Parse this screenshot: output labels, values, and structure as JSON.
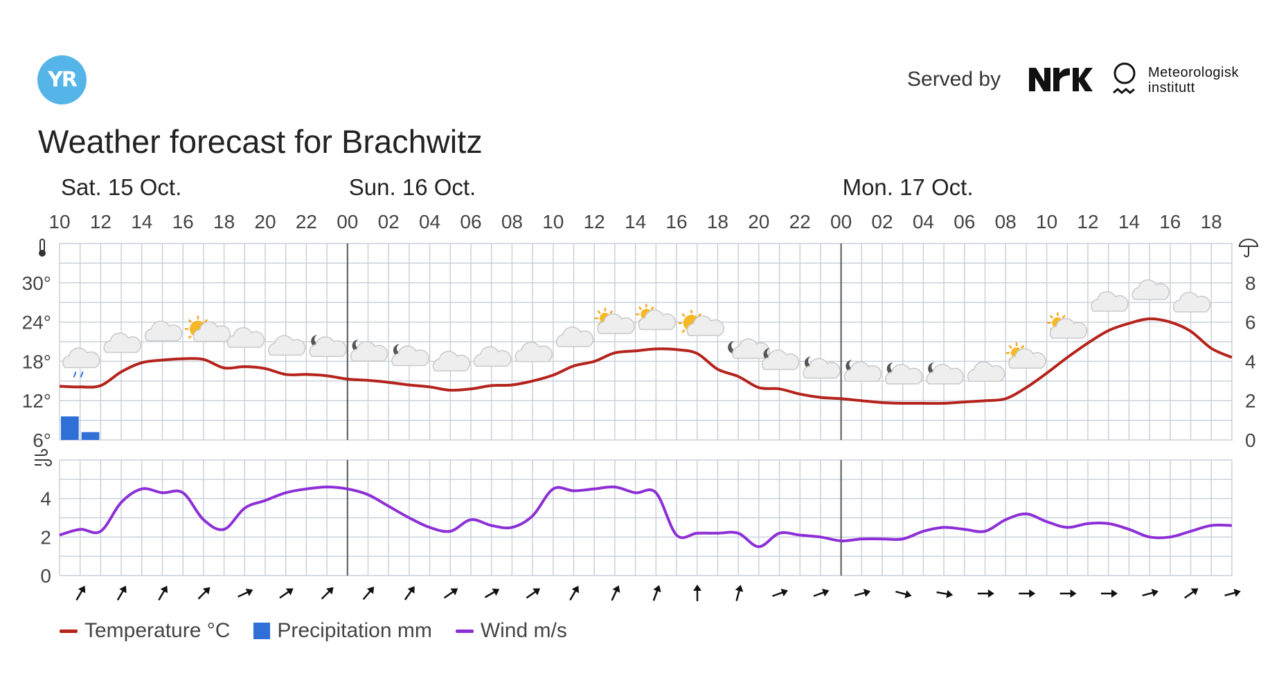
{
  "header": {
    "logo_text": "YR",
    "served_by_label": "Served by",
    "partner_nrk_label": "NRK",
    "partner_met_line1": "Meteorologisk",
    "partner_met_line2": "institutt",
    "title": "Weather forecast for Brachwitz"
  },
  "colors": {
    "temperature": "#b4231c",
    "precipitation": "#2f6fd6",
    "wind": "#8d2fd6",
    "grid": "#c9d1da",
    "day_divider": "#555555",
    "logo": "#56b5e8"
  },
  "legend": [
    {
      "label": "Temperature °C",
      "color": "#b4231c",
      "kind": "line"
    },
    {
      "label": "Precipitation mm",
      "color": "#2f6fd6",
      "kind": "box"
    },
    {
      "label": "Wind m/s",
      "color": "#8d2fd6",
      "kind": "line"
    }
  ],
  "chart_data": {
    "type": "line",
    "days": [
      {
        "label": "Sat. 15 Oct.",
        "start_index": 0
      },
      {
        "label": "Sun. 16 Oct.",
        "start_index": 7
      },
      {
        "label": "Mon. 17 Oct.",
        "start_index": 19
      }
    ],
    "hour_labels": [
      "10",
      "12",
      "14",
      "16",
      "18",
      "20",
      "22",
      "00",
      "02",
      "04",
      "06",
      "08",
      "10",
      "12",
      "14",
      "16",
      "18",
      "20",
      "22",
      "00",
      "02",
      "04",
      "06",
      "08",
      "10",
      "12",
      "14",
      "16",
      "18"
    ],
    "temperature_axis": {
      "ticks": [
        6,
        12,
        18,
        24,
        30
      ],
      "tick_labels": [
        "6°",
        "12°",
        "18°",
        "24°",
        "30°"
      ],
      "range": [
        6,
        36
      ],
      "icon": "thermometer-icon"
    },
    "precipitation_axis": {
      "ticks": [
        0,
        2,
        4,
        6,
        8
      ],
      "range": [
        0,
        10
      ],
      "icon": "umbrella-icon"
    },
    "wind_axis": {
      "ticks": [
        0,
        2,
        4
      ],
      "range": [
        0,
        6
      ],
      "icon": "wind-icon"
    },
    "temperature": {
      "hours": [
        0,
        1,
        2,
        3,
        4,
        5,
        6,
        7,
        8,
        9,
        10,
        11,
        12,
        13,
        14,
        15,
        16,
        17,
        18,
        19,
        20,
        21,
        22,
        23,
        24,
        25,
        26,
        27,
        28,
        29,
        30,
        31,
        32,
        33,
        34,
        35,
        36,
        37,
        38,
        39,
        40,
        41,
        42,
        43,
        44,
        45,
        46,
        47,
        48,
        49,
        50,
        51,
        52,
        53,
        54,
        55,
        56,
        57
      ],
      "values": [
        14.2,
        14.1,
        14.3,
        16.4,
        17.8,
        18.2,
        18.4,
        18.3,
        17,
        17.2,
        16.9,
        16,
        16,
        15.8,
        15.3,
        15.1,
        14.8,
        14.4,
        14.1,
        13.6,
        13.8,
        14.3,
        14.4,
        15,
        15.9,
        17.3,
        18,
        19.3,
        19.6,
        19.9,
        19.8,
        19.2,
        16.8,
        15.7,
        14,
        13.8,
        13,
        12.5,
        12.3,
        12,
        11.7,
        11.6,
        11.6,
        11.6,
        11.8,
        12,
        12.3,
        14,
        16.2,
        18.6,
        20.8,
        22.7,
        23.8,
        24.5,
        24,
        22.6,
        20,
        18.6
      ]
    },
    "precipitation": {
      "hours": [
        0,
        1
      ],
      "values": [
        1.2,
        0.4
      ]
    },
    "wind": {
      "hours": [
        0,
        1,
        2,
        3,
        4,
        5,
        6,
        7,
        8,
        9,
        10,
        11,
        12,
        13,
        14,
        15,
        16,
        17,
        18,
        19,
        20,
        21,
        22,
        23,
        24,
        25,
        26,
        27,
        28,
        29,
        30,
        31,
        32,
        33,
        34,
        35,
        36,
        37,
        38,
        39,
        40,
        41,
        42,
        43,
        44,
        45,
        46,
        47,
        48,
        49,
        50,
        51,
        52,
        53,
        54,
        55,
        56,
        57
      ],
      "values": [
        2.1,
        2.4,
        2.3,
        3.8,
        4.5,
        4.3,
        4.3,
        2.9,
        2.4,
        3.5,
        3.9,
        4.3,
        4.5,
        4.6,
        4.5,
        4.2,
        3.6,
        3,
        2.5,
        2.3,
        2.9,
        2.6,
        2.5,
        3.1,
        4.5,
        4.4,
        4.5,
        4.6,
        4.3,
        4.3,
        2.1,
        2.2,
        2.2,
        2.2,
        1.5,
        2.2,
        2.1,
        2,
        1.8,
        1.9,
        1.9,
        1.9,
        2.3,
        2.5,
        2.4,
        2.3,
        2.9,
        3.2,
        2.8,
        2.5,
        2.7,
        2.7,
        2.4,
        2,
        2,
        2.3,
        2.6,
        2.6
      ]
    },
    "weather_icons": [
      "cloud-rain",
      "cloud",
      "cloud",
      "partly-sunny",
      "cloud",
      "cloud",
      "night-cloud",
      "night-cloud",
      "night-cloud",
      "cloud",
      "cloud",
      "cloud",
      "cloud",
      "partly-sunny-cloud",
      "partly-sunny-cloud",
      "partly-sunny",
      "night-fair",
      "night-cloud",
      "night-cloud",
      "night-cloud",
      "night-cloud",
      "night-cloud",
      "cloud",
      "partly-sunny-cloud",
      "partly-sunny-cloud",
      "cloud",
      "cloud",
      "cloud"
    ],
    "wind_arrow_angles_deg": [
      60,
      60,
      60,
      45,
      25,
      35,
      45,
      50,
      55,
      35,
      30,
      35,
      60,
      65,
      70,
      90,
      75,
      20,
      20,
      15,
      -15,
      -10,
      0,
      0,
      0,
      0,
      15,
      35,
      15
    ]
  }
}
